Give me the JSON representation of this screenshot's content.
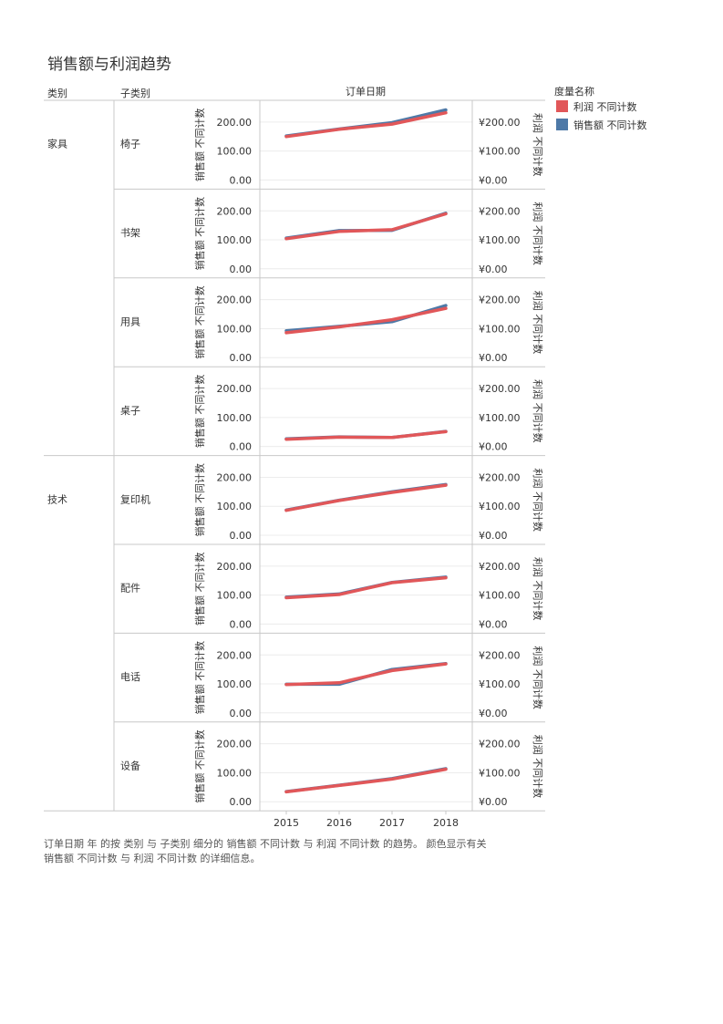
{
  "page": {
    "title": "销售额与利润趋势",
    "caption": {
      "line1": "订单日期 年 的按 类别 与 子类别 细分的 销售额 不同计数 与 利润 不同计数 的趋势。  颜色显示有关",
      "line2": "销售额 不同计数 与 利润 不同计数 的详细信息。"
    }
  },
  "chart_data": {
    "type": "line",
    "headers": {
      "category": "类别",
      "subcategory": "子类别",
      "columns": "订单日期"
    },
    "x": [
      "2015",
      "2016",
      "2017",
      "2018"
    ],
    "left_axis": {
      "label": "销售额 不同计数",
      "ticks": [
        "0.00",
        "100.00",
        "200.00"
      ],
      "ylim": [
        0,
        250
      ]
    },
    "right_axis": {
      "label": "利润 不同计数",
      "ticks": [
        "¥0.00",
        "¥100.00",
        "¥200.00"
      ],
      "ylim": [
        0,
        250
      ]
    },
    "legend": {
      "title": "度量名称",
      "position": "top-right",
      "items": [
        {
          "name": "利润 不同计数",
          "color": "#E15759"
        },
        {
          "name": "销售额 不同计数",
          "color": "#4E79A7"
        }
      ]
    },
    "grid": "horizontal",
    "panels": [
      {
        "category": "家具",
        "subcategory": "椅子",
        "sales": [
          152,
          176,
          198,
          242
        ],
        "profit": [
          150,
          175,
          193,
          232
        ]
      },
      {
        "category": "",
        "subcategory": "书架",
        "sales": [
          106,
          132,
          133,
          192
        ],
        "profit": [
          104,
          129,
          135,
          190
        ]
      },
      {
        "category": "",
        "subcategory": "用具",
        "sales": [
          93,
          108,
          124,
          180
        ],
        "profit": [
          86,
          106,
          131,
          170
        ]
      },
      {
        "category": "",
        "subcategory": "桌子",
        "sales": [
          26,
          33,
          31,
          52
        ],
        "profit": [
          25,
          32,
          31,
          51
        ]
      },
      {
        "category": "技术",
        "subcategory": "复印机",
        "sales": [
          87,
          121,
          150,
          175
        ],
        "profit": [
          86,
          120,
          148,
          173
        ]
      },
      {
        "category": "",
        "subcategory": "配件",
        "sales": [
          93,
          104,
          144,
          162
        ],
        "profit": [
          91,
          102,
          143,
          160
        ]
      },
      {
        "category": "",
        "subcategory": "电话",
        "sales": [
          99,
          99,
          150,
          170
        ],
        "profit": [
          98,
          104,
          146,
          169
        ]
      },
      {
        "category": "",
        "subcategory": "设备",
        "sales": [
          35,
          57,
          80,
          114
        ],
        "profit": [
          34,
          56,
          78,
          112
        ]
      }
    ]
  }
}
